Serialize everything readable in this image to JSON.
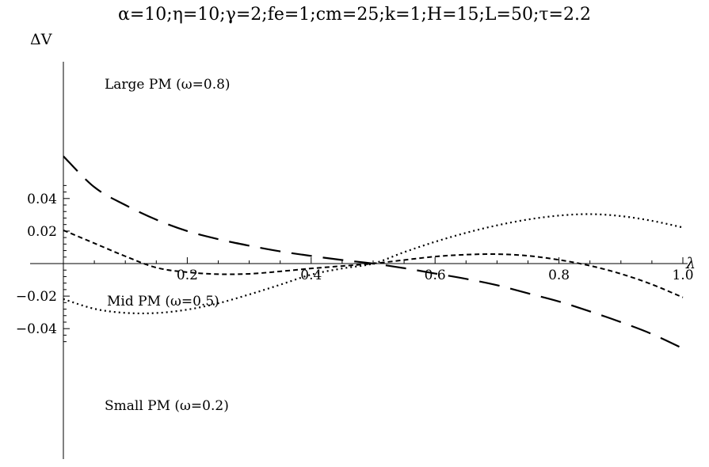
{
  "chart_data": {
    "type": "line",
    "title": "α=10;η=10;γ=2;fe=1;cm=25;k=1;H=15;L=50;τ=2.2",
    "xlabel": "λ",
    "ylabel": "ΔV",
    "xlim": [
      0,
      1.0
    ],
    "ylim": [
      -0.05,
      0.05
    ],
    "x_ticks": [
      "0.2",
      "0.4",
      "0.6",
      "0.8",
      "1.0"
    ],
    "y_ticks": [
      "0.04",
      "0.02",
      "−0.02",
      "−0.04"
    ],
    "grid": false,
    "legend": "inline labels",
    "series": [
      {
        "name": "Large PM (ω=0.8)",
        "style": "long-dash",
        "x": [
          0.0,
          0.05,
          0.1,
          0.15,
          0.2,
          0.25,
          0.3,
          0.35,
          0.4,
          0.45,
          0.5,
          0.55,
          0.6,
          0.65,
          0.7,
          0.75,
          0.8,
          0.85,
          0.9,
          0.95,
          1.0
        ],
        "y": [
          0.066,
          0.047,
          0.036,
          0.027,
          0.02,
          0.015,
          0.011,
          0.0075,
          0.0047,
          0.0022,
          0.0,
          -0.0028,
          -0.0061,
          -0.0094,
          -0.0133,
          -0.0183,
          -0.0233,
          -0.0294,
          -0.036,
          -0.0433,
          -0.0522
        ]
      },
      {
        "name": "Mid PM (ω=0.5)",
        "style": "short-dash",
        "x": [
          0.0,
          0.05,
          0.1,
          0.15,
          0.2,
          0.25,
          0.3,
          0.35,
          0.4,
          0.45,
          0.5,
          0.55,
          0.6,
          0.65,
          0.7,
          0.75,
          0.8,
          0.85,
          0.9,
          0.95,
          1.0
        ],
        "y": [
          0.0205,
          0.0125,
          0.0045,
          -0.0025,
          -0.0053,
          -0.0065,
          -0.0063,
          -0.0048,
          -0.003,
          -0.0015,
          0.0,
          0.0022,
          0.0043,
          0.0055,
          0.0058,
          0.0048,
          0.0023,
          -0.0013,
          -0.0063,
          -0.0128,
          -0.0208
        ]
      },
      {
        "name": "Small PM (ω=0.2)",
        "style": "dotted",
        "x": [
          0.0,
          0.05,
          0.1,
          0.15,
          0.2,
          0.25,
          0.3,
          0.35,
          0.4,
          0.45,
          0.5,
          0.55,
          0.6,
          0.65,
          0.7,
          0.75,
          0.8,
          0.85,
          0.9,
          0.95,
          1.0
        ],
        "y": [
          -0.0218,
          -0.0278,
          -0.0303,
          -0.0304,
          -0.0283,
          -0.0244,
          -0.019,
          -0.013,
          -0.0068,
          -0.003,
          0.0,
          0.007,
          0.0134,
          0.0189,
          0.0235,
          0.0271,
          0.0295,
          0.0304,
          0.0292,
          0.0263,
          0.0222
        ]
      }
    ]
  }
}
